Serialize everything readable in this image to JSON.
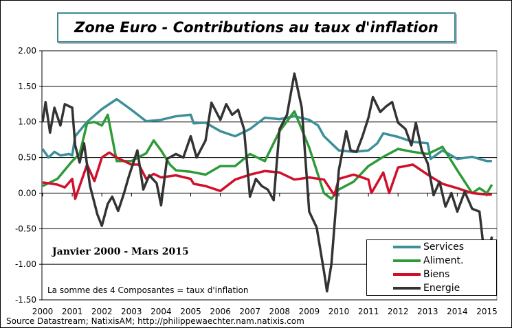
{
  "chart_data": {
    "type": "line",
    "title": "Zone Euro - Contributions au taux d'inflation",
    "subtitle": "Janvier 2000 - Mars 2015",
    "annotation": "La somme des 4 Composantes = taux d'inflation",
    "source": "Source Datastream; NatixisAM; http://philippewaechter.nam.natixis.com",
    "ylim": [
      -1.5,
      2.0
    ],
    "xlim": [
      2000,
      2015.3
    ],
    "yticks": [
      "2.00",
      "1.50",
      "1.00",
      "0.50",
      "0.00",
      "-0.50",
      "-1.00",
      "-1.50"
    ],
    "xticks": [
      "2000",
      "2001",
      "2002",
      "2003",
      "2004",
      "2005",
      "2006",
      "2007",
      "2008",
      "2009",
      "2010",
      "2011",
      "2012",
      "2013",
      "2014",
      "2015"
    ],
    "grid": "horizontal",
    "legend_position": "bottom-right",
    "series": [
      {
        "name": "Services",
        "color": "#3d8f99",
        "points": [
          [
            2000,
            0.62
          ],
          [
            2000.2,
            0.5
          ],
          [
            2000.4,
            0.58
          ],
          [
            2000.6,
            0.53
          ],
          [
            2000.9,
            0.55
          ],
          [
            2001,
            0.53
          ],
          [
            2001.1,
            0.8
          ],
          [
            2001.5,
            1.0
          ],
          [
            2002,
            1.18
          ],
          [
            2002.5,
            1.32
          ],
          [
            2003,
            1.17
          ],
          [
            2003.5,
            1.01
          ],
          [
            2004,
            1.03
          ],
          [
            2004.5,
            1.08
          ],
          [
            2005,
            1.1
          ],
          [
            2005.1,
            0.98
          ],
          [
            2005.5,
            0.99
          ],
          [
            2006,
            0.87
          ],
          [
            2006.5,
            0.8
          ],
          [
            2007,
            0.9
          ],
          [
            2007.5,
            1.06
          ],
          [
            2008,
            1.04
          ],
          [
            2008.5,
            1.08
          ],
          [
            2009,
            1.03
          ],
          [
            2009.3,
            0.95
          ],
          [
            2009.5,
            0.8
          ],
          [
            2010,
            0.6
          ],
          [
            2010.5,
            0.58
          ],
          [
            2011,
            0.6
          ],
          [
            2011.3,
            0.7
          ],
          [
            2011.5,
            0.84
          ],
          [
            2012,
            0.79
          ],
          [
            2012.5,
            0.72
          ],
          [
            2013,
            0.7
          ],
          [
            2013.1,
            0.48
          ],
          [
            2013.5,
            0.6
          ],
          [
            2014,
            0.48
          ],
          [
            2014.5,
            0.51
          ],
          [
            2015,
            0.45
          ],
          [
            2015.17,
            0.45
          ]
        ]
      },
      {
        "name": "Aliment.",
        "color": "#2e9a38",
        "points": [
          [
            2000,
            0.1
          ],
          [
            2000.5,
            0.2
          ],
          [
            2001,
            0.45
          ],
          [
            2001.25,
            0.55
          ],
          [
            2001.5,
            0.98
          ],
          [
            2001.75,
            1.0
          ],
          [
            2002,
            0.95
          ],
          [
            2002.2,
            1.1
          ],
          [
            2002.5,
            0.45
          ],
          [
            2003,
            0.45
          ],
          [
            2003.5,
            0.56
          ],
          [
            2003.75,
            0.74
          ],
          [
            2004,
            0.6
          ],
          [
            2004.3,
            0.4
          ],
          [
            2004.5,
            0.32
          ],
          [
            2005,
            0.3
          ],
          [
            2005.5,
            0.26
          ],
          [
            2006,
            0.38
          ],
          [
            2006.5,
            0.38
          ],
          [
            2007,
            0.55
          ],
          [
            2007.5,
            0.45
          ],
          [
            2008,
            0.87
          ],
          [
            2008.5,
            1.15
          ],
          [
            2009,
            0.64
          ],
          [
            2009.5,
            0.0
          ],
          [
            2009.75,
            -0.08
          ],
          [
            2010,
            0.05
          ],
          [
            2010.5,
            0.16
          ],
          [
            2011,
            0.38
          ],
          [
            2011.5,
            0.51
          ],
          [
            2012,
            0.62
          ],
          [
            2012.5,
            0.58
          ],
          [
            2013,
            0.55
          ],
          [
            2013.5,
            0.65
          ],
          [
            2014,
            0.32
          ],
          [
            2014.5,
            0.0
          ],
          [
            2014.75,
            0.07
          ],
          [
            2015,
            0.0
          ],
          [
            2015.17,
            0.12
          ]
        ]
      },
      {
        "name": "Biens",
        "color": "#d0102a",
        "points": [
          [
            2000,
            0.15
          ],
          [
            2000.5,
            0.12
          ],
          [
            2000.75,
            0.08
          ],
          [
            2001,
            0.2
          ],
          [
            2001.1,
            -0.08
          ],
          [
            2001.5,
            0.4
          ],
          [
            2001.75,
            0.17
          ],
          [
            2002,
            0.5
          ],
          [
            2002.25,
            0.57
          ],
          [
            2002.5,
            0.5
          ],
          [
            2003,
            0.4
          ],
          [
            2003.25,
            0.4
          ],
          [
            2003.5,
            0.2
          ],
          [
            2003.75,
            0.27
          ],
          [
            2004,
            0.22
          ],
          [
            2004.5,
            0.25
          ],
          [
            2005,
            0.2
          ],
          [
            2005.1,
            0.13
          ],
          [
            2005.5,
            0.1
          ],
          [
            2006,
            0.03
          ],
          [
            2006.5,
            0.19
          ],
          [
            2007,
            0.26
          ],
          [
            2007.5,
            0.31
          ],
          [
            2008,
            0.29
          ],
          [
            2008.5,
            0.19
          ],
          [
            2009,
            0.22
          ],
          [
            2009.5,
            0.19
          ],
          [
            2009.85,
            -0.03
          ],
          [
            2010,
            0.2
          ],
          [
            2010.5,
            0.26
          ],
          [
            2011,
            0.19
          ],
          [
            2011.1,
            0.0
          ],
          [
            2011.5,
            0.29
          ],
          [
            2011.7,
            0.0
          ],
          [
            2012,
            0.36
          ],
          [
            2012.5,
            0.4
          ],
          [
            2013,
            0.26
          ],
          [
            2013.5,
            0.13
          ],
          [
            2014,
            0.07
          ],
          [
            2014.5,
            0.0
          ],
          [
            2015,
            -0.02
          ],
          [
            2015.17,
            -0.02
          ]
        ]
      },
      {
        "name": "Energie",
        "color": "#333333",
        "points": [
          [
            2000,
            1.0
          ],
          [
            2000.1,
            1.28
          ],
          [
            2000.25,
            0.85
          ],
          [
            2000.4,
            1.2
          ],
          [
            2000.6,
            0.95
          ],
          [
            2000.75,
            1.25
          ],
          [
            2001,
            1.2
          ],
          [
            2001.1,
            0.67
          ],
          [
            2001.25,
            0.43
          ],
          [
            2001.4,
            0.7
          ],
          [
            2001.6,
            0.1
          ],
          [
            2001.85,
            -0.3
          ],
          [
            2002,
            -0.46
          ],
          [
            2002.2,
            -0.15
          ],
          [
            2002.35,
            -0.05
          ],
          [
            2002.55,
            -0.25
          ],
          [
            2002.75,
            0.0
          ],
          [
            2002.9,
            0.22
          ],
          [
            2003.2,
            0.6
          ],
          [
            2003.4,
            0.05
          ],
          [
            2003.6,
            0.25
          ],
          [
            2003.85,
            0.14
          ],
          [
            2004,
            -0.17
          ],
          [
            2004.2,
            0.48
          ],
          [
            2004.5,
            0.55
          ],
          [
            2004.75,
            0.5
          ],
          [
            2005,
            0.8
          ],
          [
            2005.2,
            0.5
          ],
          [
            2005.5,
            0.74
          ],
          [
            2005.7,
            1.27
          ],
          [
            2006,
            1.03
          ],
          [
            2006.2,
            1.25
          ],
          [
            2006.4,
            1.1
          ],
          [
            2006.6,
            1.17
          ],
          [
            2006.8,
            0.9
          ],
          [
            2007,
            -0.05
          ],
          [
            2007.2,
            0.2
          ],
          [
            2007.4,
            0.1
          ],
          [
            2007.6,
            0.05
          ],
          [
            2007.8,
            -0.1
          ],
          [
            2008,
            0.9
          ],
          [
            2008.25,
            1.1
          ],
          [
            2008.5,
            1.68
          ],
          [
            2008.75,
            1.2
          ],
          [
            2009,
            -0.26
          ],
          [
            2009.25,
            -0.48
          ],
          [
            2009.5,
            -1.1
          ],
          [
            2009.6,
            -1.38
          ],
          [
            2009.75,
            -1.0
          ],
          [
            2010,
            0.32
          ],
          [
            2010.25,
            0.87
          ],
          [
            2010.4,
            0.6
          ],
          [
            2010.6,
            0.58
          ],
          [
            2010.8,
            0.8
          ],
          [
            2011,
            1.06
          ],
          [
            2011.15,
            1.35
          ],
          [
            2011.4,
            1.14
          ],
          [
            2011.6,
            1.22
          ],
          [
            2011.8,
            1.28
          ],
          [
            2012,
            0.99
          ],
          [
            2012.25,
            0.9
          ],
          [
            2012.45,
            0.67
          ],
          [
            2012.6,
            0.99
          ],
          [
            2012.8,
            0.6
          ],
          [
            2013,
            0.42
          ],
          [
            2013.2,
            -0.03
          ],
          [
            2013.4,
            0.16
          ],
          [
            2013.6,
            -0.19
          ],
          [
            2013.8,
            0.0
          ],
          [
            2014,
            -0.26
          ],
          [
            2014.25,
            0.02
          ],
          [
            2014.5,
            -0.22
          ],
          [
            2014.75,
            -0.26
          ],
          [
            2014.95,
            -0.99
          ],
          [
            2015.17,
            -0.61
          ]
        ]
      }
    ]
  }
}
